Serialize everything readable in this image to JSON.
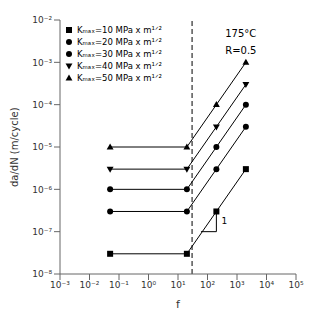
{
  "chart_data": {
    "type": "line",
    "xlabel": "f",
    "ylabel": "da/dN (m/cycle)",
    "log": true,
    "grid": false,
    "legend": "upper left",
    "xlim": [
      0.001,
      100000
    ],
    "ylim": [
      1e-08,
      0.01
    ],
    "xticks": [
      {
        "value": 0.001,
        "label": "10⁻³"
      },
      {
        "value": 0.01,
        "label": "10⁻²"
      },
      {
        "value": 0.1,
        "label": "10⁻¹"
      },
      {
        "value": 1,
        "label": "10⁰"
      },
      {
        "value": 10,
        "label": "10¹"
      },
      {
        "value": 100,
        "label": "10²"
      },
      {
        "value": 1000,
        "label": "10³"
      },
      {
        "value": 10000,
        "label": "10⁴"
      },
      {
        "value": 100000,
        "label": "10⁵"
      }
    ],
    "yticks": [
      {
        "value": 1e-08,
        "label": "10⁻⁸"
      },
      {
        "value": 1e-07,
        "label": "10⁻⁷"
      },
      {
        "value": 1e-06,
        "label": "10⁻⁶"
      },
      {
        "value": 1e-05,
        "label": "10⁻⁵"
      },
      {
        "value": 0.0001,
        "label": "10⁻⁴"
      },
      {
        "value": 0.001,
        "label": "10⁻³"
      },
      {
        "value": 0.01,
        "label": "10⁻²"
      }
    ],
    "annotations": [
      "175°C",
      "R=0.5"
    ],
    "vline": {
      "x": 30,
      "line_style": "dashed",
      "color": "#000000"
    },
    "slope_marker": {
      "x": [
        60,
        200,
        200
      ],
      "values": [
        1e-07,
        1e-07,
        3.3333333333333335e-07
      ],
      "label": "1",
      "color": "#000000"
    },
    "series": [
      {
        "name": "Kₘₐₓ=10 MPa x m¹ᐟ²",
        "marker": "square",
        "color": "#000000",
        "x": [
          0.05,
          20,
          200,
          2000
        ],
        "values": [
          3e-08,
          3e-08,
          3e-07,
          3e-06
        ]
      },
      {
        "name": "Kₘₐₓ=20 MPa x m¹ᐟ²",
        "marker": "circle",
        "color": "#000000",
        "x": [
          0.05,
          20,
          200,
          2000
        ],
        "values": [
          3e-07,
          3e-07,
          3e-06,
          3e-05
        ]
      },
      {
        "name": "Kₘₐₓ=30 MPa x m¹ᐟ²",
        "marker": "circle",
        "color": "#000000",
        "x": [
          0.05,
          20,
          200,
          2000
        ],
        "values": [
          1e-06,
          1e-06,
          1e-05,
          0.0001
        ]
      },
      {
        "name": "Kₘₐₓ=40 MPa x m¹ᐟ²",
        "marker": "triangle_down",
        "color": "#000000",
        "x": [
          0.05,
          20,
          200,
          2000
        ],
        "values": [
          3e-06,
          3e-06,
          3e-05,
          0.0003
        ]
      },
      {
        "name": "Kₘₐₓ=50 MPa x m¹ᐟ²",
        "marker": "triangle_up",
        "color": "#000000",
        "x": [
          0.05,
          20,
          200,
          2000
        ],
        "values": [
          1e-05,
          1e-05,
          0.0001,
          0.001
        ]
      }
    ]
  }
}
